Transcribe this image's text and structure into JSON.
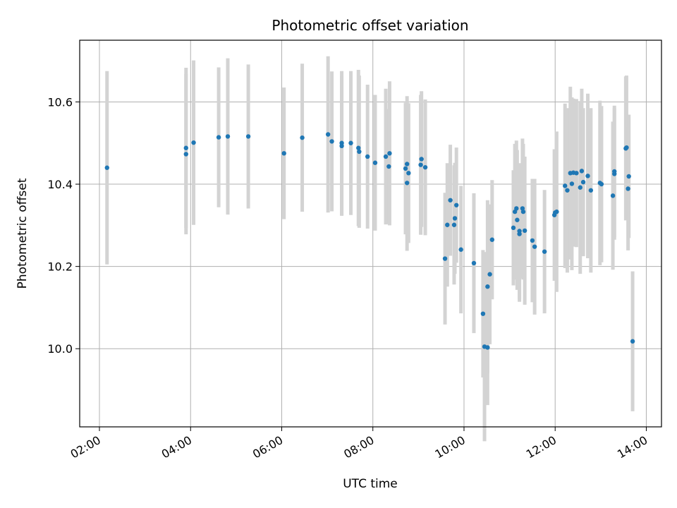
{
  "chart_data": {
    "type": "scatter",
    "title": "Photometric offset variation",
    "xlabel": "UTC time",
    "ylabel": "Photometric offset",
    "x_axis_format": "HH:MM",
    "xlim": [
      "01:34",
      "14:20"
    ],
    "ylim": [
      9.81,
      10.75
    ],
    "x_ticks": [
      "02:00",
      "04:00",
      "06:00",
      "08:00",
      "10:00",
      "12:00",
      "14:00"
    ],
    "y_ticks": [
      10.0,
      10.2,
      10.4,
      10.6
    ],
    "y_tick_labels": [
      "10.0",
      "10.2",
      "10.4",
      "10.6"
    ],
    "grid": true,
    "colors": {
      "point": "#1f77b4",
      "errorbar": "#d3d3d3",
      "grid": "#b0b0b0"
    },
    "series": [
      {
        "x": [
          "02:10",
          "03:54",
          "03:54",
          "04:04",
          "04:37",
          "04:49",
          "05:16",
          "06:03",
          "06:27",
          "07:01",
          "07:06",
          "07:19",
          "07:19",
          "07:31",
          "07:41",
          "07:42",
          "07:53",
          "08:03",
          "08:17",
          "08:21",
          "08:22",
          "08:43",
          "08:45",
          "08:45",
          "08:47",
          "09:03",
          "09:04",
          "09:09",
          "09:35",
          "09:38",
          "09:42",
          "09:47",
          "09:48",
          "09:50",
          "09:56",
          "10:13",
          "10:25",
          "10:27",
          "10:31",
          "10:31",
          "10:34",
          "10:37",
          "11:05",
          "11:07",
          "11:09",
          "11:10",
          "11:13",
          "11:13",
          "11:17",
          "11:18",
          "11:20",
          "11:30",
          "11:33",
          "11:46",
          "11:59",
          "12:00",
          "12:02",
          "12:13",
          "12:16",
          "12:20",
          "12:22",
          "12:24",
          "12:28",
          "12:33",
          "12:35",
          "12:37",
          "12:43",
          "12:47",
          "12:59",
          "13:01",
          "13:16",
          "13:18",
          "13:18",
          "13:33",
          "13:34",
          "13:36",
          "13:37",
          "13:42"
        ],
        "y": [
          10.44,
          10.473,
          10.488,
          10.501,
          10.514,
          10.516,
          10.516,
          10.475,
          10.513,
          10.521,
          10.504,
          10.493,
          10.5,
          10.5,
          10.488,
          10.479,
          10.467,
          10.452,
          10.467,
          10.443,
          10.475,
          10.438,
          10.449,
          10.403,
          10.427,
          10.447,
          10.461,
          10.441,
          10.219,
          10.301,
          10.361,
          10.301,
          10.317,
          10.349,
          10.241,
          10.208,
          10.085,
          10.005,
          10.003,
          10.151,
          10.181,
          10.265,
          10.294,
          10.333,
          10.341,
          10.313,
          10.286,
          10.279,
          10.341,
          10.333,
          10.287,
          10.263,
          10.248,
          10.236,
          10.325,
          10.331,
          10.333,
          10.396,
          10.385,
          10.427,
          10.401,
          10.428,
          10.427,
          10.392,
          10.432,
          10.405,
          10.42,
          10.385,
          10.403,
          10.4,
          10.372,
          10.425,
          10.431,
          10.487,
          10.489,
          10.389,
          10.419,
          10.018
        ],
        "yerr": [
          0.235,
          0.195,
          0.195,
          0.2,
          0.17,
          0.19,
          0.175,
          0.16,
          0.18,
          0.19,
          0.17,
          0.17,
          0.175,
          0.175,
          0.19,
          0.185,
          0.175,
          0.165,
          0.165,
          0.14,
          0.175,
          0.16,
          0.165,
          0.165,
          0.17,
          0.17,
          0.165,
          0.165,
          0.16,
          0.15,
          0.135,
          0.145,
          0.135,
          0.14,
          0.155,
          0.17,
          0.155,
          0.23,
          0.14,
          0.21,
          0.17,
          0.145,
          0.14,
          0.165,
          0.165,
          0.17,
          0.165,
          0.165,
          0.17,
          0.165,
          0.18,
          0.15,
          0.165,
          0.15,
          0.16,
          0.15,
          0.195,
          0.2,
          0.2,
          0.21,
          0.21,
          0.18,
          0.18,
          0.21,
          0.2,
          0.18,
          0.2,
          0.2,
          0.2,
          0.19,
          0.18,
          0.16,
          0.16,
          0.175,
          0.175,
          0.15,
          0.15,
          0.17
        ]
      }
    ]
  }
}
